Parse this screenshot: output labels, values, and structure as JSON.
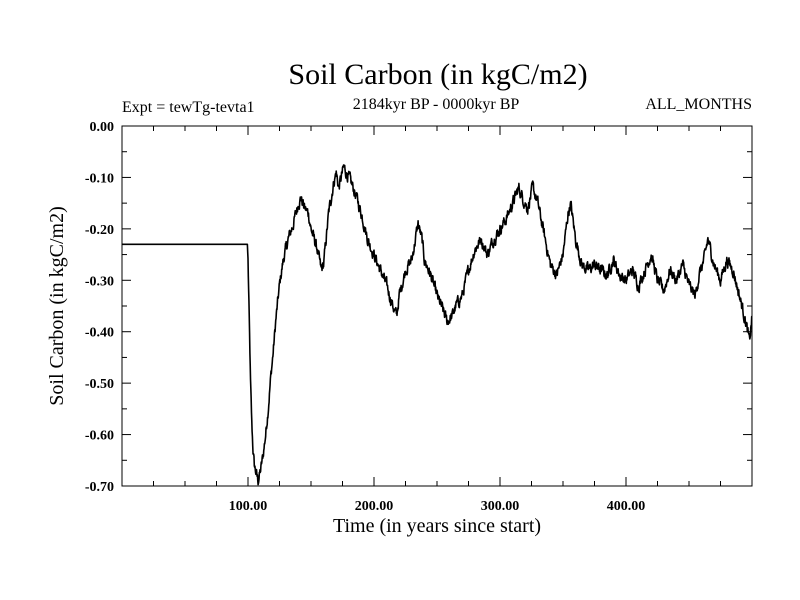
{
  "chart_data": {
    "type": "line",
    "title": "Soil Carbon (in kgC/m2)",
    "subtitle": "2184kyr BP - 0000kyr BP",
    "experiment": "Expt = tewTg-tevta1",
    "period": "ALL_MONTHS",
    "xlabel": "Time (in years since start)",
    "ylabel": "Soil Carbon (in kgC/m2)",
    "xlim": [
      0,
      500
    ],
    "ylim": [
      -0.7,
      0.0
    ],
    "x_ticks": [
      {
        "value": 100,
        "label": "100.00"
      },
      {
        "value": 200,
        "label": "200.00"
      },
      {
        "value": 300,
        "label": "300.00"
      },
      {
        "value": 400,
        "label": "400.00"
      }
    ],
    "y_ticks": [
      {
        "value": 0.0,
        "label": "0.00"
      },
      {
        "value": -0.1,
        "label": "-0.10"
      },
      {
        "value": -0.2,
        "label": "-0.20"
      },
      {
        "value": -0.3,
        "label": "-0.30"
      },
      {
        "value": -0.4,
        "label": "-0.40"
      },
      {
        "value": -0.5,
        "label": "-0.50"
      },
      {
        "value": -0.6,
        "label": "-0.60"
      },
      {
        "value": -0.7,
        "label": "-0.70"
      }
    ],
    "series": [
      {
        "name": "Soil Carbon",
        "color": "#000000",
        "x": [
          0,
          99.5,
          100,
          101,
          102,
          103,
          104,
          105,
          106,
          107,
          108,
          110,
          112,
          114,
          116,
          118,
          120,
          122,
          125,
          128,
          132,
          136,
          140,
          142,
          145,
          148,
          150,
          155,
          158,
          160,
          164,
          168,
          170,
          172,
          174,
          176,
          180,
          185,
          190,
          195,
          200,
          205,
          210,
          215,
          218,
          220,
          225,
          230,
          235,
          238,
          240,
          245,
          250,
          255,
          258,
          262,
          265,
          270,
          275,
          280,
          285,
          290,
          295,
          300,
          305,
          310,
          315,
          318,
          322,
          326,
          330,
          335,
          340,
          345,
          350,
          354,
          356,
          360,
          365,
          370,
          375,
          380,
          385,
          390,
          395,
          400,
          405,
          410,
          415,
          420,
          425,
          430,
          435,
          440,
          445,
          450,
          455,
          458,
          462,
          465,
          470,
          475,
          480,
          485,
          490,
          495,
          498,
          500
        ],
        "values": [
          -0.23,
          -0.23,
          -0.26,
          -0.38,
          -0.5,
          -0.58,
          -0.63,
          -0.66,
          -0.67,
          -0.68,
          -0.69,
          -0.67,
          -0.64,
          -0.6,
          -0.55,
          -0.49,
          -0.44,
          -0.38,
          -0.31,
          -0.26,
          -0.22,
          -0.19,
          -0.15,
          -0.14,
          -0.16,
          -0.17,
          -0.2,
          -0.24,
          -0.28,
          -0.27,
          -0.17,
          -0.11,
          -0.09,
          -0.12,
          -0.1,
          -0.08,
          -0.1,
          -0.13,
          -0.17,
          -0.22,
          -0.25,
          -0.28,
          -0.31,
          -0.35,
          -0.37,
          -0.33,
          -0.28,
          -0.26,
          -0.19,
          -0.22,
          -0.26,
          -0.29,
          -0.33,
          -0.36,
          -0.38,
          -0.37,
          -0.35,
          -0.33,
          -0.28,
          -0.24,
          -0.22,
          -0.25,
          -0.22,
          -0.2,
          -0.18,
          -0.15,
          -0.12,
          -0.14,
          -0.16,
          -0.12,
          -0.15,
          -0.21,
          -0.27,
          -0.29,
          -0.25,
          -0.17,
          -0.15,
          -0.22,
          -0.27,
          -0.28,
          -0.27,
          -0.28,
          -0.29,
          -0.26,
          -0.29,
          -0.3,
          -0.28,
          -0.31,
          -0.28,
          -0.25,
          -0.3,
          -0.32,
          -0.28,
          -0.3,
          -0.27,
          -0.31,
          -0.33,
          -0.29,
          -0.26,
          -0.22,
          -0.27,
          -0.3,
          -0.26,
          -0.28,
          -0.33,
          -0.38,
          -0.42,
          -0.37
        ]
      }
    ]
  }
}
